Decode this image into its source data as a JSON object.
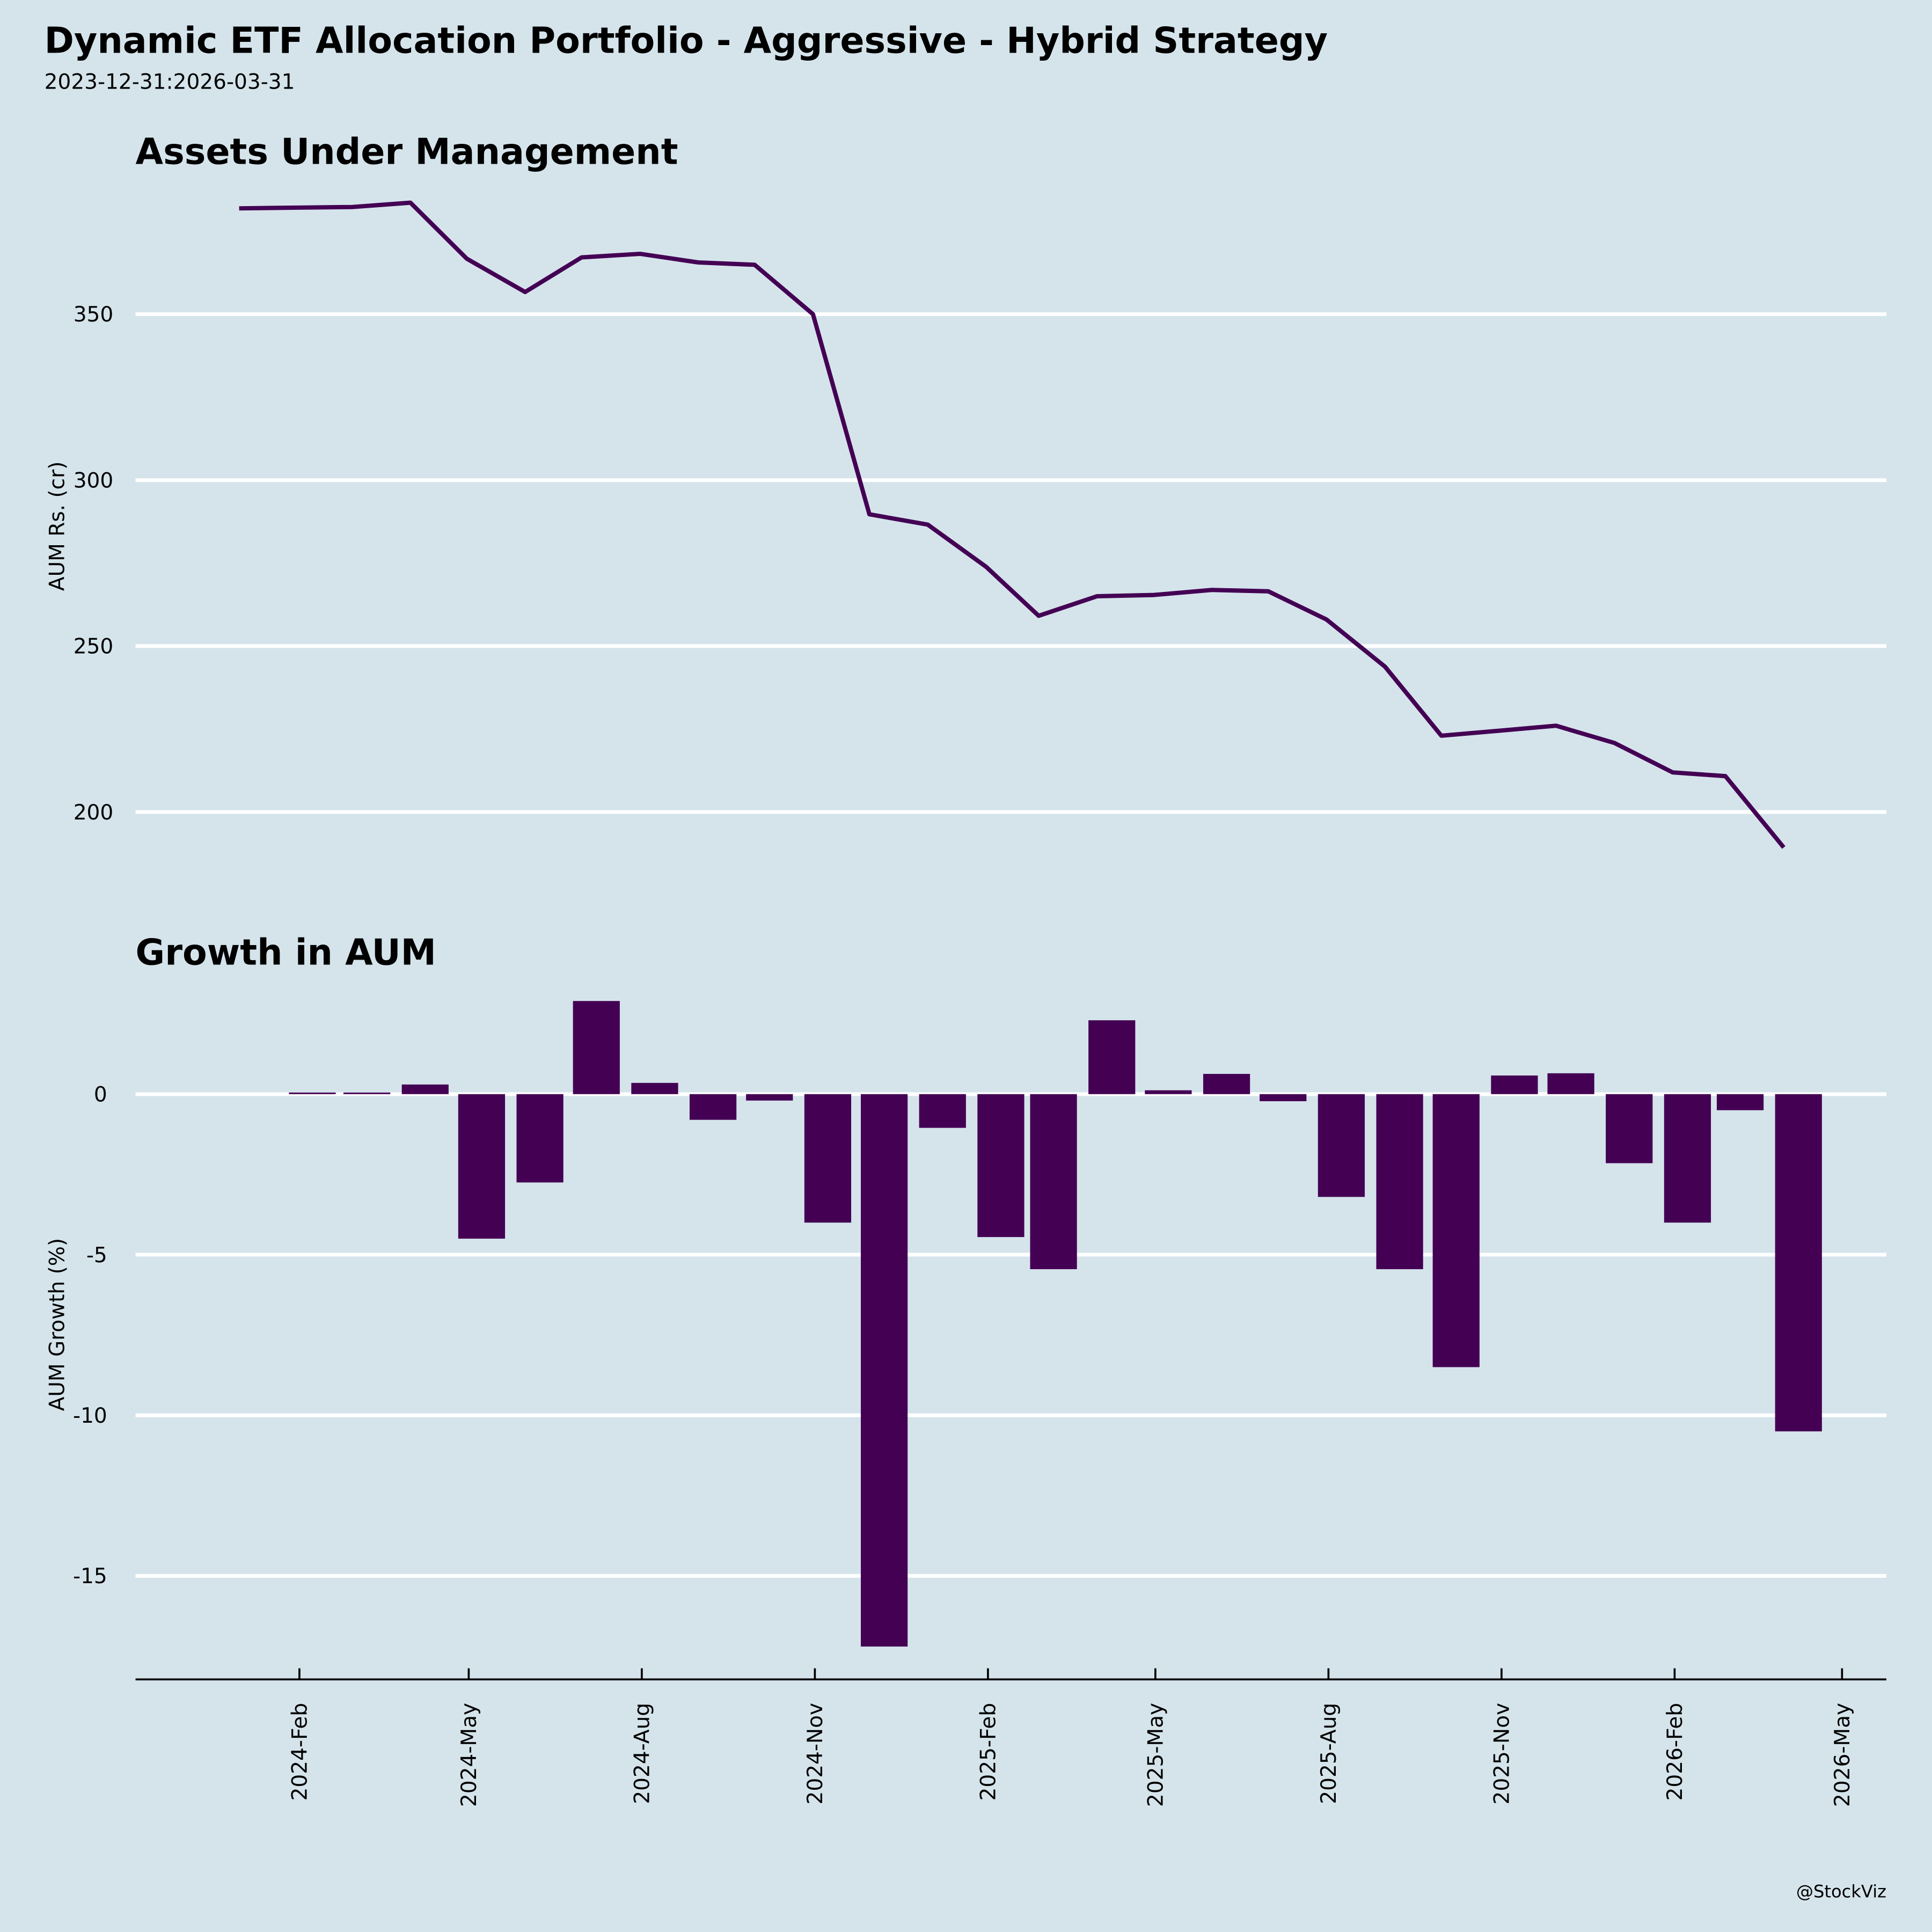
{
  "header": {
    "title": "Dynamic ETF Allocation Portfolio - Aggressive - Hybrid Strategy",
    "subtitle": "2023-12-31:2026-03-31"
  },
  "credit": "@StockViz",
  "colors": {
    "background": "#d5e4eb",
    "series": "#440154",
    "grid": "#ffffff",
    "axis": "#000000"
  },
  "chart_data": [
    {
      "type": "line",
      "title": "Assets Under Management",
      "xlabel": "",
      "ylabel": "AUM Rs. (cr)",
      "yticks": [
        200,
        250,
        300,
        350
      ],
      "ylim": [
        180,
        389
      ],
      "grid": true,
      "x": [
        "2023-12-31",
        "2024-01-31",
        "2024-02-29",
        "2024-03-31",
        "2024-04-30",
        "2024-05-31",
        "2024-06-30",
        "2024-07-31",
        "2024-08-31",
        "2024-09-30",
        "2024-10-31",
        "2024-11-30",
        "2024-12-31",
        "2025-01-31",
        "2025-02-28",
        "2025-03-31",
        "2025-04-30",
        "2025-05-31",
        "2025-06-30",
        "2025-07-31",
        "2025-08-31",
        "2025-09-30",
        "2025-10-31",
        "2025-11-30",
        "2025-12-31",
        "2026-01-31",
        "2026-02-28",
        "2026-03-31"
      ],
      "values": [
        381.9,
        382.1,
        382.3,
        383.6,
        366.7,
        356.7,
        367.1,
        368.2,
        365.6,
        364.9,
        350.0,
        289.7,
        286.6,
        273.9,
        259.1,
        265.0,
        265.4,
        266.9,
        266.5,
        258.0,
        243.8,
        223.0,
        224.5,
        226.0,
        220.8,
        211.9,
        210.8,
        189.3
      ]
    },
    {
      "type": "bar",
      "title": "Growth in AUM",
      "xlabel": "",
      "ylabel": "AUM Growth (%)",
      "yticks": [
        -15,
        -10,
        -5,
        0
      ],
      "ylim": [
        -18.2,
        3.0
      ],
      "grid": true,
      "x": [
        "2024-01-31",
        "2024-02-29",
        "2024-03-31",
        "2024-04-30",
        "2024-05-31",
        "2024-06-30",
        "2024-07-31",
        "2024-08-31",
        "2024-09-30",
        "2024-10-31",
        "2024-11-30",
        "2024-12-31",
        "2025-01-31",
        "2025-02-28",
        "2025-03-31",
        "2025-04-30",
        "2025-05-31",
        "2025-06-30",
        "2025-07-31",
        "2025-08-31",
        "2025-09-30",
        "2025-10-31",
        "2025-11-30",
        "2025-12-31",
        "2026-01-31",
        "2026-02-28",
        "2026-03-31"
      ],
      "values": [
        0.05,
        0.05,
        0.3,
        -4.5,
        -2.75,
        2.9,
        0.35,
        -0.8,
        -0.2,
        -4.0,
        -17.2,
        -1.05,
        -4.45,
        -5.45,
        2.3,
        0.12,
        0.63,
        -0.22,
        -3.2,
        -5.45,
        -8.5,
        0.58,
        0.65,
        -2.15,
        -4.0,
        -0.5,
        -10.5
      ],
      "xticks": [
        {
          "date": "2024-02-01",
          "label": "2024-Feb"
        },
        {
          "date": "2024-05-01",
          "label": "2024-May"
        },
        {
          "date": "2024-08-01",
          "label": "2024-Aug"
        },
        {
          "date": "2024-11-01",
          "label": "2024-Nov"
        },
        {
          "date": "2025-02-01",
          "label": "2025-Feb"
        },
        {
          "date": "2025-05-01",
          "label": "2025-May"
        },
        {
          "date": "2025-08-01",
          "label": "2025-Aug"
        },
        {
          "date": "2025-11-01",
          "label": "2025-Nov"
        },
        {
          "date": "2026-02-01",
          "label": "2026-Feb"
        },
        {
          "date": "2026-05-01",
          "label": "2026-May"
        }
      ]
    }
  ]
}
